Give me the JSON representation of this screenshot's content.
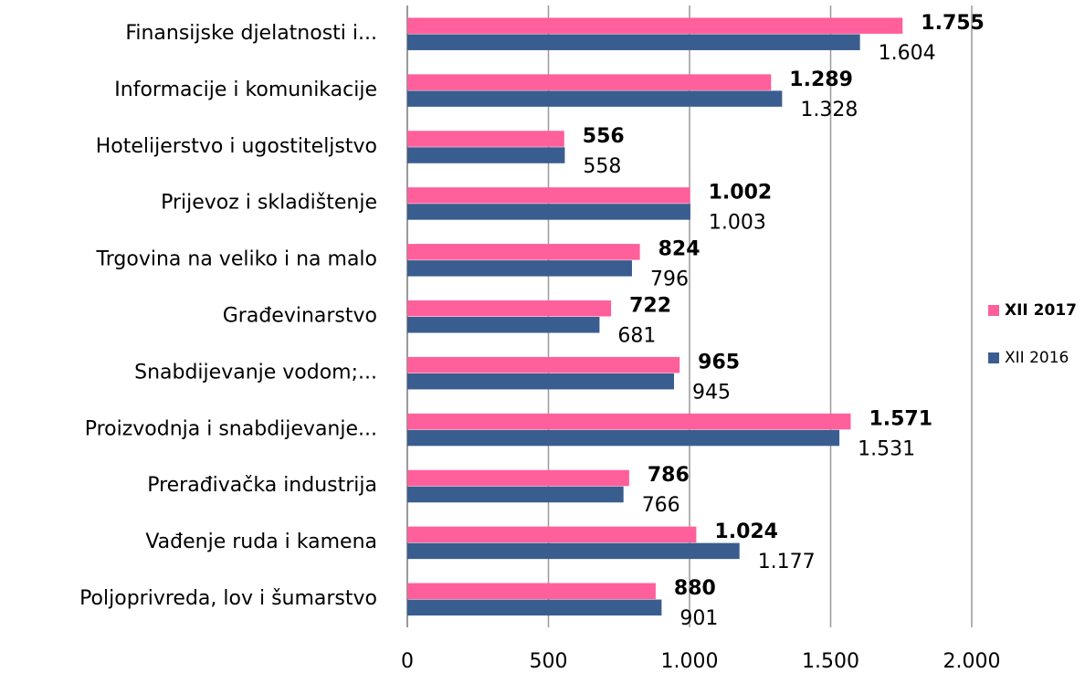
{
  "chart_data": {
    "type": "hbar",
    "categories": [
      "Finansijske djelatnosti i...",
      "Informacije i komunikacije",
      "Hotelijerstvo i ugostiteljstvo",
      "Prijevoz i skladištenje",
      "Trgovina na veliko i na malo",
      "Građevinarstvo",
      "Snabdijevanje vodom;...",
      "Proizvodnja i snabdijevanje...",
      "Prerađivačka industrija",
      "Vađenje ruda i kamena",
      "Poljoprivreda, lov i šumarstvo"
    ],
    "series": [
      {
        "name": "XII 2017",
        "color": "#ff5f9b",
        "values": [
          1755,
          1289,
          556,
          1002,
          824,
          722,
          965,
          1571,
          786,
          1024,
          880
        ],
        "value_labels": [
          "1.755",
          "1.289",
          "556",
          "1.002",
          "824",
          "722",
          "965",
          "1.571",
          "786",
          "1.024",
          "880"
        ]
      },
      {
        "name": "XII 2016",
        "color": "#3a5d8f",
        "values": [
          1604,
          1328,
          558,
          1003,
          796,
          681,
          945,
          1531,
          766,
          1177,
          901
        ],
        "value_labels": [
          "1.604",
          "1.328",
          "558",
          "1.003",
          "796",
          "681",
          "945",
          "1.531",
          "766",
          "1.177",
          "901"
        ]
      }
    ],
    "xlim": [
      0,
      2000
    ],
    "xticks": [
      0,
      500,
      {
        "value": 1000,
        "label": "1.000"
      },
      {
        "value": 1500,
        "label": "1.500"
      },
      {
        "value": 2000,
        "label": "2.000"
      }
    ],
    "grid": true,
    "legend": "right"
  }
}
